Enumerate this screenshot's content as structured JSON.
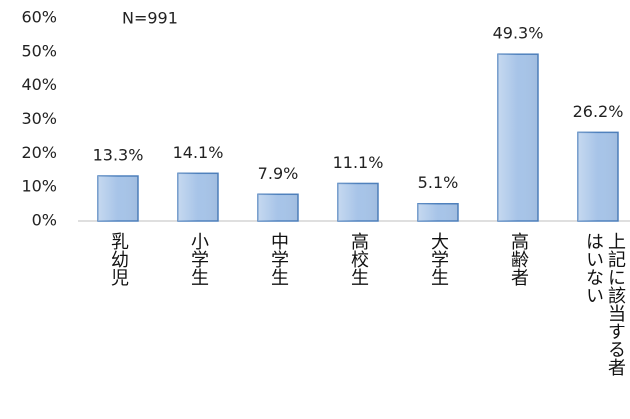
{
  "chart_data": {
    "type": "bar",
    "annotation": "N=991",
    "categories": [
      "乳幼児",
      "小学生",
      "中学生",
      "高校生",
      "大学生",
      "高齢者",
      "上記に該当する者はいない"
    ],
    "values": [
      13.3,
      14.1,
      7.9,
      11.1,
      5.1,
      49.3,
      26.2
    ],
    "value_labels": [
      "13.3%",
      "14.1%",
      "7.9%",
      "11.1%",
      "5.1%",
      "49.3%",
      "26.2%"
    ],
    "color": "#a7c4e8",
    "edge_color": "#4f81bd",
    "ylim": [
      0,
      60
    ],
    "yticks": [
      {
        "value": 0,
        "label": "0%"
      },
      {
        "value": 10,
        "label": "10%"
      },
      {
        "value": 20,
        "label": "20%"
      },
      {
        "value": 30,
        "label": "30%"
      },
      {
        "value": 40,
        "label": "40%"
      },
      {
        "value": 50,
        "label": "50%"
      },
      {
        "value": 60,
        "label": "60%"
      }
    ],
    "grid": false
  }
}
